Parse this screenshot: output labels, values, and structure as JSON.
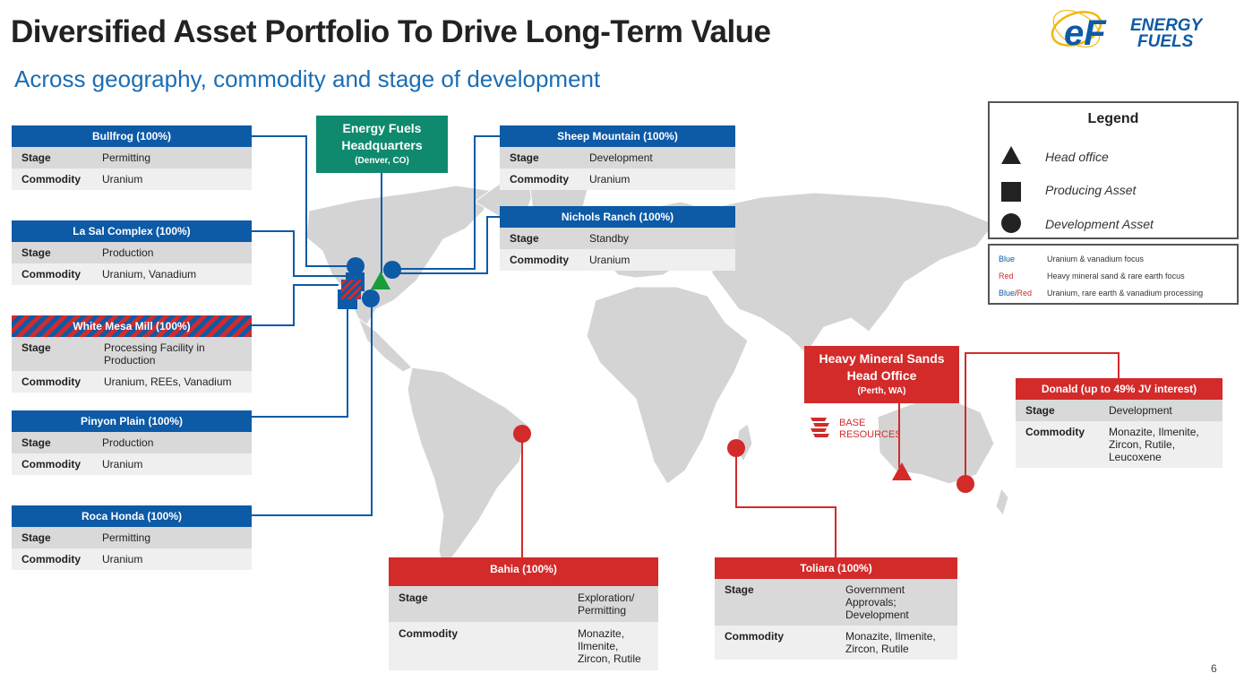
{
  "title": "Diversified Asset Portfolio To Drive Long-Term Value",
  "subtitle": "Across geography, commodity and stage of development",
  "logo": {
    "text_line1": "ENERGY",
    "text_line2": "FUELS",
    "mark": "eF"
  },
  "hq": {
    "line1": "Energy Fuels",
    "line2": "Headquarters",
    "loc": "(Denver, CO)"
  },
  "hms": {
    "line1": "Heavy Mineral Sands",
    "line2": "Head Office",
    "loc": "(Perth, WA)"
  },
  "base_logo": {
    "line1": "BASE",
    "line2": "RESOURCES"
  },
  "labels": {
    "stage": "Stage",
    "commodity": "Commodity"
  },
  "assets": {
    "bullfrog": {
      "name": "Bullfrog (100%)",
      "stage": "Permitting",
      "commodity": "Uranium"
    },
    "lasal": {
      "name": "La Sal Complex (100%)",
      "stage": "Production",
      "commodity": "Uranium, Vanadium"
    },
    "whitemesa": {
      "name": "White Mesa Mill (100%)",
      "stage": "Processing Facility in Production",
      "commodity": "Uranium, REEs, Vanadium"
    },
    "pinyon": {
      "name": "Pinyon Plain (100%)",
      "stage": "Production",
      "commodity": "Uranium"
    },
    "rocahonda": {
      "name": "Roca Honda (100%)",
      "stage": "Permitting",
      "commodity": "Uranium"
    },
    "sheep": {
      "name": "Sheep Mountain (100%)",
      "stage": "Development",
      "commodity": "Uranium"
    },
    "nichols": {
      "name": "Nichols Ranch (100%)",
      "stage": "Standby",
      "commodity": "Uranium"
    },
    "donald": {
      "name": "Donald (up to 49% JV interest)",
      "stage": "Development",
      "commodity": "Monazite, Ilmenite, Zircon, Rutile, Leucoxene"
    },
    "bahia": {
      "name": "Bahia (100%)",
      "stage": "Exploration/ Permitting",
      "commodity": "Monazite, Ilmenite, Zircon, Rutile"
    },
    "toliara": {
      "name": "Toliara (100%)",
      "stage": "Government Approvals; Development",
      "commodity": "Monazite, Ilmenite, Zircon, Rutile"
    }
  },
  "legend": {
    "title": "Legend",
    "items": [
      {
        "icon": "triangle-icon",
        "label": "Head office"
      },
      {
        "icon": "square-icon",
        "label": "Producing Asset"
      },
      {
        "icon": "circle-icon",
        "label": "Development Asset"
      }
    ],
    "colors": [
      {
        "key": "Blue",
        "desc": "Uranium & vanadium focus"
      },
      {
        "key": "Red",
        "desc": "Heavy mineral sand & rare earth focus"
      },
      {
        "key_a": "Blue",
        "sep": "/",
        "key_b": "Red",
        "desc": "Uranium, rare earth & vanadium processing"
      }
    ]
  },
  "colors": {
    "blue": "#0d5aa7",
    "red": "#d32a2a",
    "green": "#0f8a6e",
    "map": "#d4d4d4"
  },
  "page_number": "6"
}
